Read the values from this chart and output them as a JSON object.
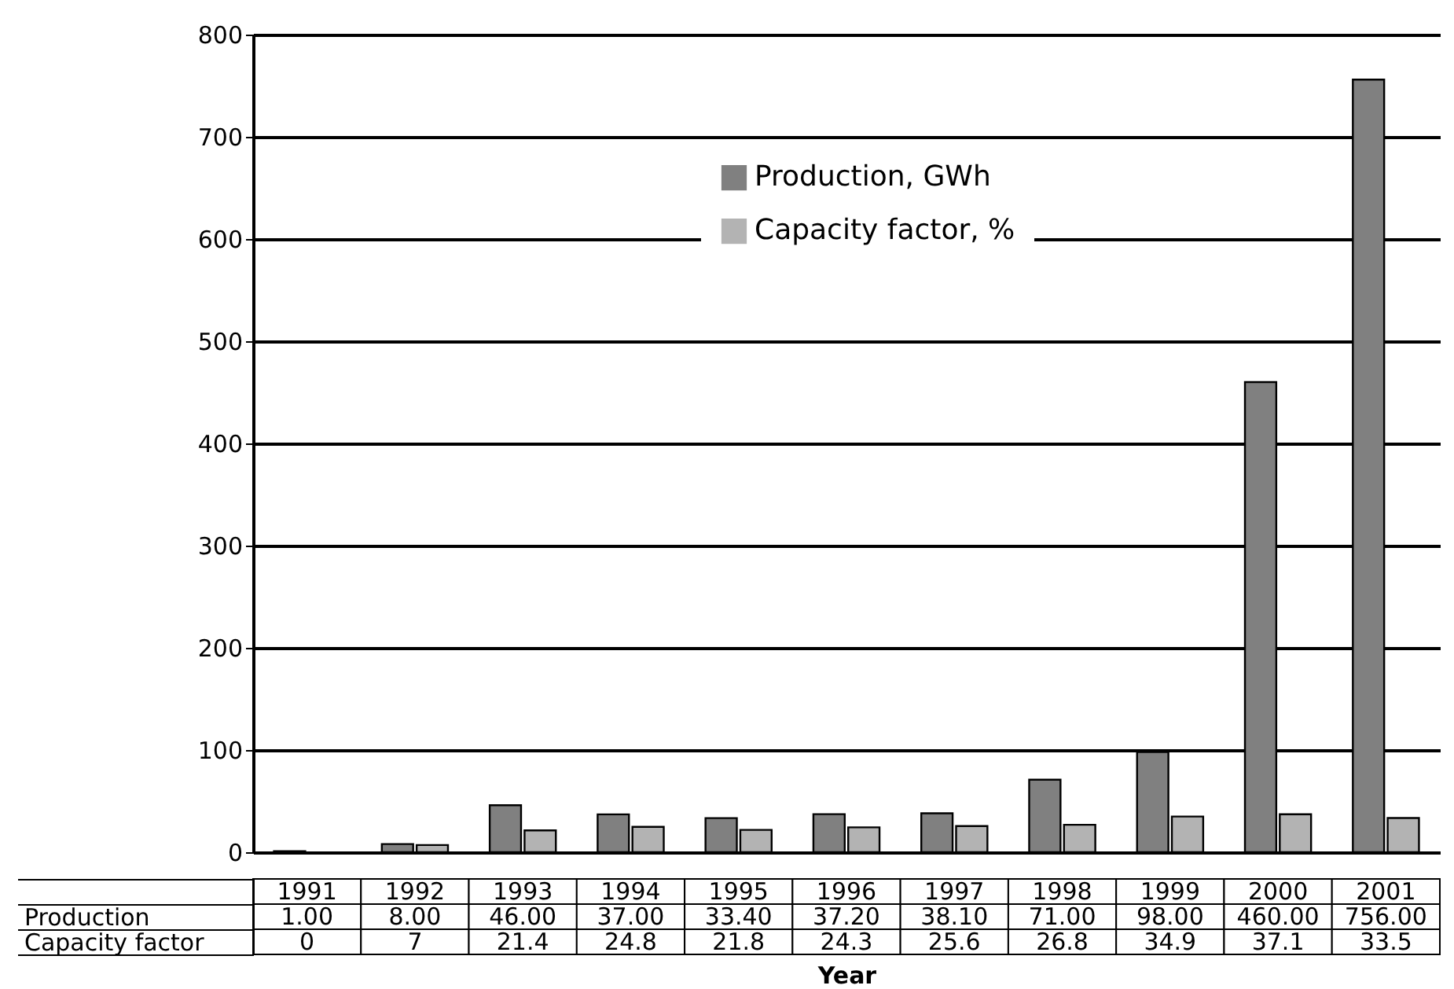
{
  "chart_data": {
    "type": "bar",
    "xlabel": "Year",
    "categories": [
      "1991",
      "1992",
      "1993",
      "1994",
      "1995",
      "1996",
      "1997",
      "1998",
      "1999",
      "2000",
      "2001"
    ],
    "series": [
      {
        "name": "Production, GWh",
        "color": "#808080",
        "values": [
          1,
          8,
          46,
          37,
          33.4,
          37.2,
          38.1,
          71,
          98,
          460,
          756
        ],
        "value_labels": [
          "1.00",
          "8.00",
          "46.00",
          "37.00",
          "33.40",
          "37.20",
          "38.10",
          "71.00",
          "98.00",
          "460.00",
          "756.00"
        ]
      },
      {
        "name": "Capacity factor, %",
        "color": "#b3b3b3",
        "values": [
          0,
          7,
          21.4,
          24.8,
          21.8,
          24.3,
          25.6,
          26.8,
          34.9,
          37.1,
          33.5
        ],
        "value_labels": [
          "0",
          "7",
          "21.4",
          "24.8",
          "21.8",
          "24.3",
          "25.6",
          "26.8",
          "34.9",
          "37.1",
          "33.5"
        ]
      }
    ],
    "annotations": [
      "Production",
      "Capacity factor"
    ],
    "ylim": [
      0,
      800
    ],
    "yticks": [
      0,
      100,
      200,
      300,
      400,
      500,
      600,
      700,
      800
    ],
    "grid": "y",
    "legend": "top"
  }
}
